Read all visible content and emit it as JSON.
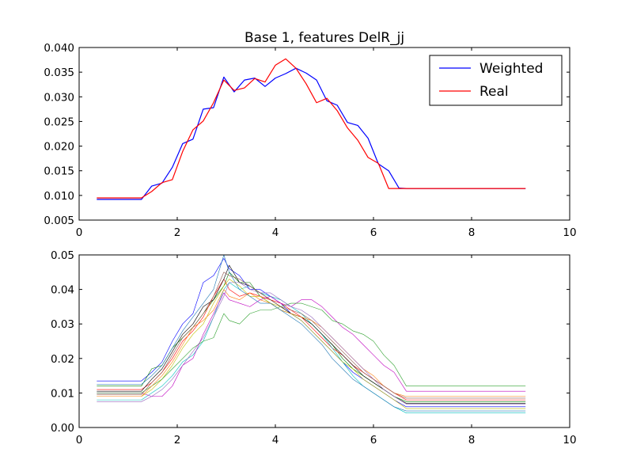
{
  "chart_data": [
    {
      "type": "line",
      "title": "Base 1, features DelR_jj",
      "xlabel": "",
      "ylabel": "",
      "xlim": [
        0,
        10
      ],
      "ylim": [
        0.005,
        0.04
      ],
      "xticks": [
        "0",
        "2",
        "4",
        "6",
        "8",
        "10"
      ],
      "yticks": [
        "0.005",
        "0.010",
        "0.015",
        "0.020",
        "0.025",
        "0.030",
        "0.035",
        "0.040"
      ],
      "legend_position": "top-right",
      "x": [
        0.36,
        0.57,
        0.78,
        0.99,
        1.2,
        1.27,
        1.48,
        1.69,
        1.9,
        2.11,
        2.32,
        2.53,
        2.74,
        2.95,
        3.16,
        3.37,
        3.58,
        3.79,
        4.0,
        4.21,
        4.42,
        4.63,
        4.84,
        5.05,
        5.26,
        5.47,
        5.68,
        5.89,
        6.1,
        6.31,
        6.52,
        6.67,
        6.88,
        7.09,
        7.3,
        7.51,
        7.72,
        7.93,
        8.14,
        8.35,
        8.56,
        8.77,
        8.98,
        9.1
      ],
      "series": [
        {
          "name": "Weighted",
          "color": "#0000ff",
          "values": [
            0.0092,
            0.0092,
            0.0092,
            0.0092,
            0.0092,
            0.0092,
            0.0119,
            0.0125,
            0.0157,
            0.0205,
            0.0214,
            0.0275,
            0.0278,
            0.034,
            0.031,
            0.0334,
            0.0338,
            0.0321,
            0.0338,
            0.0347,
            0.0358,
            0.0348,
            0.0334,
            0.0292,
            0.0283,
            0.0248,
            0.0242,
            0.0216,
            0.0164,
            0.015,
            0.0115,
            0.0114,
            0.0114,
            0.0114,
            0.0114,
            0.0114,
            0.0114,
            0.0114,
            0.0114,
            0.0114,
            0.0114,
            0.0114,
            0.0114,
            0.0114
          ]
        },
        {
          "name": "Real",
          "color": "#ff0000",
          "values": [
            0.0095,
            0.0095,
            0.0095,
            0.0095,
            0.0095,
            0.0095,
            0.0108,
            0.0126,
            0.0132,
            0.0189,
            0.0233,
            0.0251,
            0.0288,
            0.0334,
            0.0313,
            0.0318,
            0.0337,
            0.033,
            0.0364,
            0.0377,
            0.0358,
            0.0326,
            0.0288,
            0.0297,
            0.0272,
            0.0237,
            0.0212,
            0.0177,
            0.0165,
            0.0114,
            0.0114,
            0.0114,
            0.0114,
            0.0114,
            0.0114,
            0.0114,
            0.0114,
            0.0114,
            0.0114,
            0.0114,
            0.0114,
            0.0114,
            0.0114,
            0.0114
          ]
        }
      ]
    },
    {
      "type": "line",
      "title": "",
      "xlabel": "",
      "ylabel": "",
      "xlim": [
        0,
        10
      ],
      "ylim": [
        0,
        0.05
      ],
      "xticks": [
        "0",
        "2",
        "4",
        "6",
        "8",
        "10"
      ],
      "yticks": [
        "0.00",
        "0.01",
        "0.02",
        "0.03",
        "0.04",
        "0.05"
      ],
      "x": [
        0.36,
        0.78,
        1.27,
        1.48,
        1.69,
        1.9,
        2.11,
        2.32,
        2.53,
        2.74,
        2.95,
        3.06,
        3.27,
        3.48,
        3.69,
        3.9,
        4.11,
        4.32,
        4.53,
        4.74,
        4.95,
        5.16,
        5.37,
        5.58,
        5.79,
        6.0,
        6.21,
        6.42,
        6.67,
        7.09,
        7.51,
        7.93,
        8.35,
        8.77,
        9.1
      ],
      "series": [
        {
          "color": "#0000ff",
          "values": [
            0.0135,
            0.0135,
            0.0135,
            0.016,
            0.019,
            0.025,
            0.03,
            0.033,
            0.042,
            0.044,
            0.049,
            0.046,
            0.044,
            0.04,
            0.04,
            0.038,
            0.036,
            0.033,
            0.031,
            0.028,
            0.025,
            0.022,
            0.019,
            0.016,
            0.014,
            0.012,
            0.01,
            0.008,
            0.006,
            0.006,
            0.006,
            0.006,
            0.006,
            0.006,
            0.006
          ]
        },
        {
          "color": "#008000",
          "values": [
            0.012,
            0.012,
            0.012,
            0.017,
            0.018,
            0.023,
            0.026,
            0.029,
            0.033,
            0.037,
            0.041,
            0.045,
            0.042,
            0.042,
            0.038,
            0.036,
            0.034,
            0.033,
            0.032,
            0.03,
            0.027,
            0.024,
            0.02,
            0.017,
            0.015,
            0.013,
            0.011,
            0.009,
            0.0075,
            0.0075,
            0.0075,
            0.0075,
            0.0075,
            0.0075,
            0.0075
          ]
        },
        {
          "color": "#ff0000",
          "values": [
            0.011,
            0.011,
            0.011,
            0.013,
            0.016,
            0.02,
            0.025,
            0.028,
            0.032,
            0.038,
            0.043,
            0.04,
            0.038,
            0.039,
            0.038,
            0.037,
            0.036,
            0.034,
            0.032,
            0.029,
            0.026,
            0.023,
            0.021,
            0.018,
            0.016,
            0.014,
            0.012,
            0.01,
            0.008,
            0.008,
            0.008,
            0.008,
            0.008,
            0.008,
            0.008
          ]
        },
        {
          "color": "#00bfbf",
          "values": [
            0.008,
            0.008,
            0.008,
            0.01,
            0.012,
            0.015,
            0.019,
            0.021,
            0.025,
            0.032,
            0.04,
            0.042,
            0.04,
            0.041,
            0.039,
            0.038,
            0.037,
            0.035,
            0.033,
            0.03,
            0.027,
            0.023,
            0.019,
            0.015,
            0.012,
            0.01,
            0.008,
            0.006,
            0.0042,
            0.0042,
            0.0042,
            0.0042,
            0.0042,
            0.0042,
            0.0042
          ]
        },
        {
          "color": "#bf00bf",
          "values": [
            0.01,
            0.01,
            0.01,
            0.009,
            0.009,
            0.012,
            0.018,
            0.02,
            0.027,
            0.033,
            0.039,
            0.037,
            0.036,
            0.035,
            0.037,
            0.038,
            0.036,
            0.035,
            0.037,
            0.037,
            0.035,
            0.032,
            0.029,
            0.027,
            0.024,
            0.021,
            0.018,
            0.016,
            0.0105,
            0.0105,
            0.0105,
            0.0105,
            0.0105,
            0.0105,
            0.0105
          ]
        },
        {
          "color": "#bfbf00",
          "values": [
            0.009,
            0.009,
            0.009,
            0.011,
            0.014,
            0.018,
            0.023,
            0.027,
            0.03,
            0.036,
            0.041,
            0.043,
            0.041,
            0.038,
            0.038,
            0.036,
            0.035,
            0.033,
            0.031,
            0.028,
            0.025,
            0.022,
            0.019,
            0.017,
            0.014,
            0.012,
            0.01,
            0.008,
            0.0055,
            0.0055,
            0.0055,
            0.0055,
            0.0055,
            0.0055,
            0.0055
          ]
        },
        {
          "color": "#000000",
          "values": [
            0.0105,
            0.0105,
            0.0105,
            0.014,
            0.017,
            0.022,
            0.027,
            0.03,
            0.035,
            0.037,
            0.043,
            0.047,
            0.042,
            0.041,
            0.039,
            0.037,
            0.035,
            0.033,
            0.032,
            0.03,
            0.027,
            0.024,
            0.021,
            0.018,
            0.015,
            0.013,
            0.011,
            0.009,
            0.007,
            0.007,
            0.007,
            0.007,
            0.007,
            0.007,
            0.007
          ]
        },
        {
          "color": "#2ca02c",
          "values": [
            0.01,
            0.01,
            0.01,
            0.012,
            0.014,
            0.017,
            0.02,
            0.023,
            0.025,
            0.026,
            0.033,
            0.031,
            0.03,
            0.033,
            0.034,
            0.034,
            0.035,
            0.036,
            0.036,
            0.035,
            0.034,
            0.031,
            0.03,
            0.028,
            0.027,
            0.025,
            0.021,
            0.018,
            0.012,
            0.012,
            0.012,
            0.012,
            0.012,
            0.012,
            0.012
          ]
        },
        {
          "color": "#ff7f0e",
          "values": [
            0.009,
            0.009,
            0.009,
            0.012,
            0.015,
            0.019,
            0.024,
            0.029,
            0.031,
            0.034,
            0.04,
            0.038,
            0.037,
            0.039,
            0.037,
            0.036,
            0.034,
            0.033,
            0.032,
            0.031,
            0.029,
            0.026,
            0.023,
            0.02,
            0.017,
            0.015,
            0.012,
            0.01,
            0.009,
            0.009,
            0.009,
            0.009,
            0.009,
            0.009,
            0.009
          ]
        },
        {
          "color": "#1f77b4",
          "values": [
            0.0125,
            0.0125,
            0.0125,
            0.015,
            0.018,
            0.023,
            0.028,
            0.032,
            0.036,
            0.04,
            0.05,
            0.045,
            0.04,
            0.038,
            0.036,
            0.036,
            0.034,
            0.032,
            0.03,
            0.027,
            0.024,
            0.02,
            0.017,
            0.014,
            0.012,
            0.01,
            0.008,
            0.006,
            0.0048,
            0.0048,
            0.0048,
            0.0048,
            0.0048,
            0.0048,
            0.0048
          ]
        },
        {
          "color": "#9467bd",
          "values": [
            0.0075,
            0.0075,
            0.0075,
            0.009,
            0.011,
            0.014,
            0.018,
            0.022,
            0.026,
            0.032,
            0.038,
            0.042,
            0.042,
            0.04,
            0.039,
            0.039,
            0.037,
            0.035,
            0.034,
            0.032,
            0.029,
            0.026,
            0.023,
            0.02,
            0.017,
            0.014,
            0.011,
            0.009,
            0.0068,
            0.0068,
            0.0068,
            0.0068,
            0.0068,
            0.0068,
            0.0068
          ]
        },
        {
          "color": "#8c564b",
          "values": [
            0.0095,
            0.0095,
            0.0095,
            0.013,
            0.016,
            0.021,
            0.026,
            0.029,
            0.033,
            0.038,
            0.045,
            0.044,
            0.043,
            0.041,
            0.039,
            0.037,
            0.035,
            0.034,
            0.033,
            0.031,
            0.028,
            0.025,
            0.022,
            0.019,
            0.016,
            0.014,
            0.012,
            0.01,
            0.0085,
            0.0085,
            0.0085,
            0.0085,
            0.0085,
            0.0085,
            0.0085
          ]
        }
      ]
    }
  ]
}
